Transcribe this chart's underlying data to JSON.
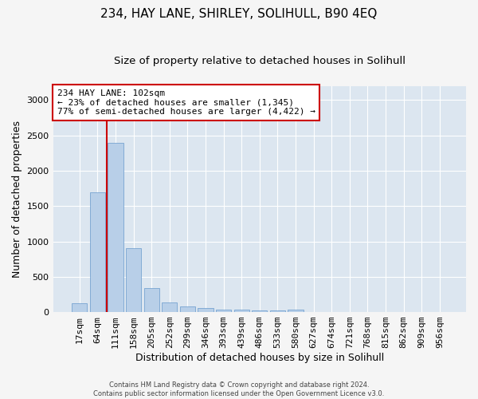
{
  "title": "234, HAY LANE, SHIRLEY, SOLIHULL, B90 4EQ",
  "subtitle": "Size of property relative to detached houses in Solihull",
  "xlabel": "Distribution of detached houses by size in Solihull",
  "ylabel": "Number of detached properties",
  "categories": [
    "17sqm",
    "64sqm",
    "111sqm",
    "158sqm",
    "205sqm",
    "252sqm",
    "299sqm",
    "346sqm",
    "393sqm",
    "439sqm",
    "486sqm",
    "533sqm",
    "580sqm",
    "627sqm",
    "674sqm",
    "721sqm",
    "768sqm",
    "815sqm",
    "862sqm",
    "909sqm",
    "956sqm"
  ],
  "values": [
    120,
    1700,
    2400,
    900,
    340,
    140,
    75,
    55,
    40,
    30,
    25,
    20,
    35,
    0,
    0,
    0,
    0,
    0,
    0,
    0,
    0
  ],
  "bar_color": "#b8cfe8",
  "bar_edge_color": "#6699cc",
  "vline_x": 1.5,
  "vline_color": "#cc0000",
  "annotation_text": "234 HAY LANE: 102sqm\n← 23% of detached houses are smaller (1,345)\n77% of semi-detached houses are larger (4,422) →",
  "annotation_box_color": "#ffffff",
  "annotation_box_edge_color": "#cc0000",
  "ylim": [
    0,
    3200
  ],
  "yticks": [
    0,
    500,
    1000,
    1500,
    2000,
    2500,
    3000
  ],
  "fig_bg_color": "#f5f5f5",
  "plot_bg_color": "#dce6f0",
  "grid_color": "#ffffff",
  "footer_text": "Contains HM Land Registry data © Crown copyright and database right 2024.\nContains public sector information licensed under the Open Government Licence v3.0.",
  "title_fontsize": 11,
  "subtitle_fontsize": 9.5,
  "xlabel_fontsize": 9,
  "ylabel_fontsize": 9,
  "tick_fontsize": 8
}
